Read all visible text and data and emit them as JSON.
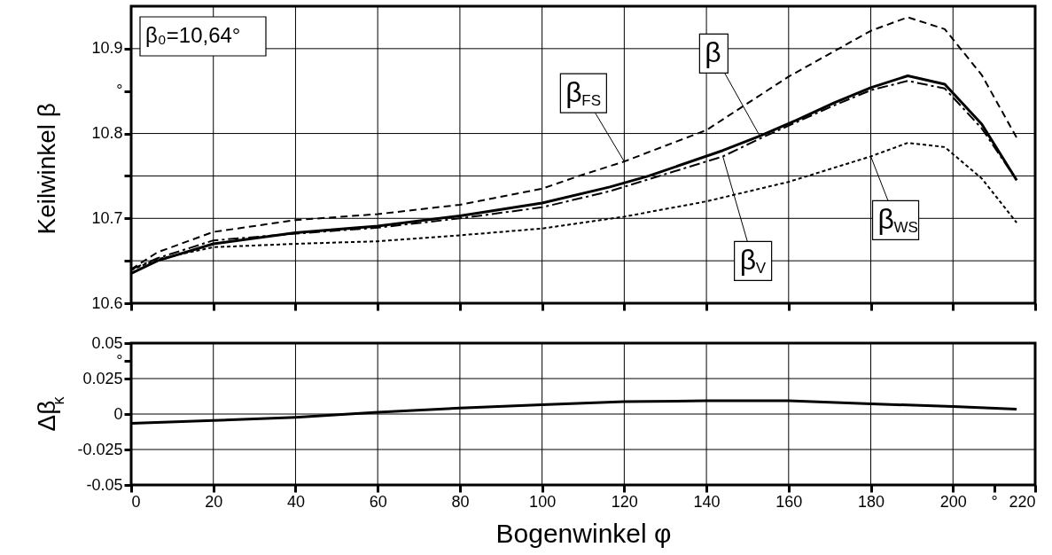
{
  "chart_data": [
    {
      "type": "line",
      "ylabel": "Keilwinkel β",
      "xlim": [
        0,
        220
      ],
      "xticks": [
        0,
        20,
        40,
        60,
        80,
        100,
        120,
        140,
        160,
        180,
        200,
        220
      ],
      "ylim": [
        10.6,
        10.95
      ],
      "yticks": [
        10.6,
        {
          "value": 10.65,
          "label": null
        },
        10.7,
        {
          "value": 10.75,
          "label": null
        },
        10.8,
        {
          "value": 10.85,
          "label": "°"
        },
        10.9
      ],
      "tick_labels": "y",
      "grid": true,
      "legend": false,
      "marker": "none",
      "annotations": [
        "β₀=10,64°"
      ],
      "series": [
        {
          "name": "β",
          "color": "#000000",
          "line_style": "solid",
          "x": [
            0,
            6.4,
            20,
            40,
            60,
            80,
            100,
            116.5,
            126,
            144,
            153,
            162,
            171,
            180,
            189,
            198,
            207,
            215.5
          ],
          "values": [
            10.635,
            10.65,
            10.67,
            10.683,
            10.691,
            10.703,
            10.718,
            10.737,
            10.75,
            10.78,
            10.797,
            10.816,
            10.836,
            10.854,
            10.868,
            10.858,
            10.811,
            10.745
          ]
        },
        {
          "name": "β$_{FS}$",
          "color": "#000000",
          "line_style": "dashed",
          "x": [
            0,
            6.4,
            20,
            40,
            60,
            80,
            100,
            109,
            120,
            140,
            160,
            180,
            189,
            198,
            207,
            215.5
          ],
          "values": [
            10.64,
            10.66,
            10.684,
            10.698,
            10.705,
            10.716,
            10.735,
            10.75,
            10.767,
            10.804,
            10.867,
            10.921,
            10.937,
            10.923,
            10.869,
            10.795
          ]
        },
        {
          "name": "β$_{V}$",
          "color": "#000000",
          "line_style": "dashdot",
          "x": [
            0,
            6.4,
            20,
            40,
            60,
            80,
            100,
            116.5,
            144,
            153,
            171,
            180,
            189,
            198,
            207,
            215.5
          ],
          "values": [
            10.64,
            10.653,
            10.674,
            10.682,
            10.689,
            10.7,
            10.713,
            10.732,
            10.773,
            10.794,
            10.833,
            10.851,
            10.862,
            10.853,
            10.806,
            10.745
          ]
        },
        {
          "name": "β$_{WS}$",
          "color": "#000000",
          "line_style": "dotted",
          "x": [
            0,
            6.4,
            20,
            40,
            60,
            80,
            100,
            120,
            140,
            160,
            180,
            189,
            198,
            207,
            215.5
          ],
          "values": [
            10.639,
            10.652,
            10.666,
            10.67,
            10.673,
            10.68,
            10.688,
            10.702,
            10.72,
            10.743,
            10.773,
            10.789,
            10.784,
            10.747,
            10.695
          ]
        }
      ]
    },
    {
      "type": "line",
      "xlabel": "Bogenwinkel φ",
      "ylabel": "Δβ$_{κ}$",
      "xlim": [
        0,
        220
      ],
      "xticks": [
        0,
        20,
        40,
        60,
        80,
        100,
        120,
        140,
        160,
        180,
        200,
        {
          "value": 210,
          "label": "°"
        },
        220
      ],
      "ylim": [
        -0.05,
        0.05
      ],
      "yticks": [
        -0.05,
        -0.025,
        0,
        0.025,
        {
          "value": 0.0375,
          "label": "°"
        },
        0.05
      ],
      "grid": true,
      "legend": false,
      "marker": "none",
      "series": [
        {
          "color": "#000000",
          "line_style": "solid",
          "x": [
            0,
            20,
            40,
            53,
            60,
            80,
            100,
            120,
            140,
            160,
            180,
            200,
            215.5
          ],
          "values": [
            -0.0065,
            -0.0046,
            -0.0023,
            0,
            0.0012,
            0.0042,
            0.0065,
            0.0087,
            0.0093,
            0.0093,
            0.0072,
            0.0053,
            0.0034
          ]
        }
      ]
    }
  ]
}
